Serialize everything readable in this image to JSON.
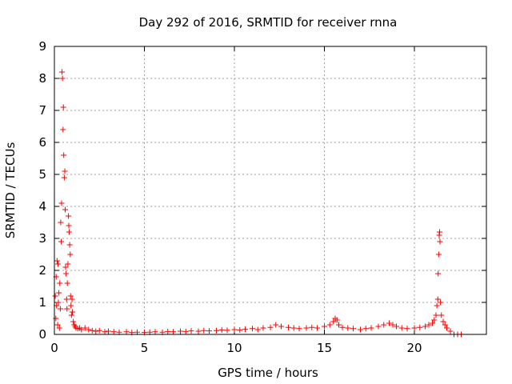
{
  "chart_data": {
    "type": "scatter",
    "title": "Day 292 of 2016, SRMTID for receiver rnna",
    "xlabel": "GPS time / hours",
    "ylabel": "SRMTID / TECUs",
    "xlim": [
      0,
      24
    ],
    "ylim": [
      0,
      9
    ],
    "xticks": [
      0,
      5,
      10,
      15,
      20
    ],
    "yticks": [
      0,
      1,
      2,
      3,
      4,
      5,
      6,
      7,
      8,
      9
    ],
    "grid": true,
    "marker": "+",
    "color": "#ff0000",
    "series": [
      {
        "name": "SRMTID",
        "x": [
          0.05,
          0.08,
          0.1,
          0.12,
          0.15,
          0.18,
          0.2,
          0.22,
          0.25,
          0.28,
          0.3,
          0.33,
          0.35,
          0.38,
          0.4,
          0.42,
          0.45,
          0.48,
          0.5,
          0.52,
          0.55,
          0.58,
          0.6,
          0.62,
          0.65,
          0.68,
          0.7,
          0.72,
          0.75,
          0.78,
          0.8,
          0.82,
          0.85,
          0.88,
          0.9,
          0.92,
          0.95,
          0.98,
          1.0,
          1.05,
          1.1,
          1.15,
          1.2,
          1.3,
          1.4,
          1.5,
          1.7,
          1.9,
          2.1,
          2.3,
          2.5,
          2.8,
          3.0,
          3.3,
          3.6,
          4.0,
          4.3,
          4.6,
          5.0,
          5.3,
          5.6,
          6.0,
          6.3,
          6.6,
          7.0,
          7.3,
          7.6,
          8.0,
          8.3,
          8.6,
          9.0,
          9.3,
          9.6,
          10.0,
          10.3,
          10.6,
          11.0,
          11.3,
          11.6,
          12.0,
          12.3,
          12.6,
          13.0,
          13.3,
          13.6,
          14.0,
          14.3,
          14.6,
          15.0,
          15.3,
          15.5,
          15.6,
          15.7,
          15.8,
          16.0,
          16.3,
          16.6,
          17.0,
          17.3,
          17.6,
          18.0,
          18.3,
          18.6,
          18.8,
          19.0,
          19.3,
          19.6,
          20.0,
          20.3,
          20.6,
          20.8,
          21.0,
          21.1,
          21.2,
          21.25,
          21.3,
          21.32,
          21.35,
          21.38,
          21.4,
          21.42,
          21.45,
          21.5,
          21.6,
          21.7,
          21.8,
          22.0,
          22.2,
          22.4,
          22.6
        ],
        "y": [
          1.2,
          0.5,
          1.8,
          0.9,
          2.3,
          0.3,
          2.2,
          1.0,
          1.3,
          0.2,
          1.6,
          0.8,
          3.5,
          2.9,
          4.1,
          8.2,
          8.0,
          6.4,
          7.1,
          5.6,
          4.9,
          5.1,
          3.9,
          2.1,
          1.9,
          1.1,
          0.8,
          1.6,
          2.2,
          3.7,
          3.4,
          3.2,
          2.8,
          2.5,
          1.2,
          0.9,
          0.6,
          1.1,
          0.7,
          0.4,
          0.3,
          0.25,
          0.2,
          0.18,
          0.2,
          0.15,
          0.2,
          0.15,
          0.12,
          0.1,
          0.12,
          0.08,
          0.1,
          0.08,
          0.07,
          0.08,
          0.06,
          0.07,
          0.06,
          0.07,
          0.08,
          0.07,
          0.09,
          0.08,
          0.1,
          0.09,
          0.11,
          0.1,
          0.12,
          0.11,
          0.12,
          0.14,
          0.13,
          0.15,
          0.14,
          0.16,
          0.18,
          0.15,
          0.2,
          0.22,
          0.3,
          0.25,
          0.22,
          0.2,
          0.18,
          0.2,
          0.22,
          0.2,
          0.25,
          0.3,
          0.4,
          0.5,
          0.45,
          0.3,
          0.22,
          0.2,
          0.18,
          0.15,
          0.18,
          0.2,
          0.25,
          0.3,
          0.35,
          0.3,
          0.25,
          0.2,
          0.18,
          0.2,
          0.22,
          0.25,
          0.3,
          0.35,
          0.45,
          0.6,
          0.9,
          1.1,
          1.9,
          2.5,
          3.1,
          3.2,
          2.9,
          1.0,
          0.6,
          0.4,
          0.3,
          0.2,
          0.1,
          0.0,
          0.0,
          0.0
        ]
      }
    ]
  }
}
